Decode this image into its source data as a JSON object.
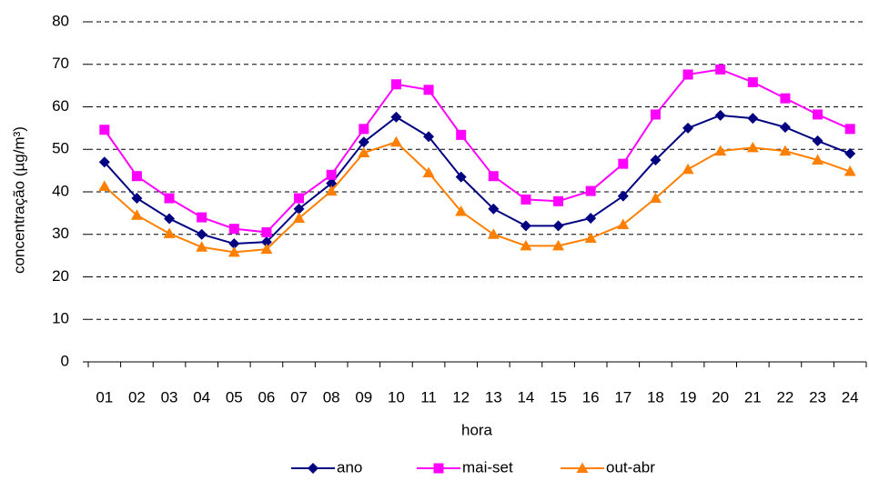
{
  "chart_data": {
    "type": "line",
    "x_label": "hora",
    "y_label": "concentração  (µg/m³)",
    "categories": [
      "01",
      "02",
      "03",
      "04",
      "05",
      "06",
      "07",
      "08",
      "09",
      "10",
      "11",
      "12",
      "13",
      "14",
      "15",
      "16",
      "17",
      "18",
      "19",
      "20",
      "21",
      "22",
      "23",
      "24"
    ],
    "series": [
      {
        "name": "ano",
        "color": "#000080",
        "marker": "diamond",
        "values": [
          47.0,
          38.5,
          33.7,
          30.0,
          27.8,
          28.2,
          36.0,
          42.0,
          51.7,
          57.6,
          53.0,
          43.5,
          36.0,
          32.0,
          32.0,
          33.8,
          39.0,
          47.5,
          55.0,
          58.0,
          57.3,
          55.2,
          52.0,
          49.0
        ]
      },
      {
        "name": "mai-set",
        "color": "#ff00ff",
        "marker": "square",
        "values": [
          54.6,
          43.7,
          38.5,
          34.0,
          31.3,
          30.5,
          38.5,
          44.0,
          54.8,
          65.3,
          64.0,
          53.4,
          43.7,
          38.2,
          37.8,
          40.2,
          46.6,
          58.2,
          67.6,
          68.8,
          65.8,
          62.0,
          58.2,
          54.8
        ]
      },
      {
        "name": "out-abr",
        "color": "#ff8000",
        "marker": "triangle",
        "values": [
          41.3,
          34.5,
          30.2,
          27.0,
          25.8,
          26.5,
          33.8,
          40.2,
          49.2,
          51.7,
          44.5,
          35.4,
          30.0,
          27.3,
          27.3,
          29.1,
          32.3,
          38.5,
          45.3,
          49.6,
          50.4,
          49.6,
          47.5,
          44.8
        ]
      }
    ],
    "ylim": [
      0,
      80
    ],
    "yticks": [
      0,
      10,
      20,
      30,
      40,
      50,
      60,
      70,
      80
    ],
    "grid": true,
    "legend": "bottom"
  }
}
